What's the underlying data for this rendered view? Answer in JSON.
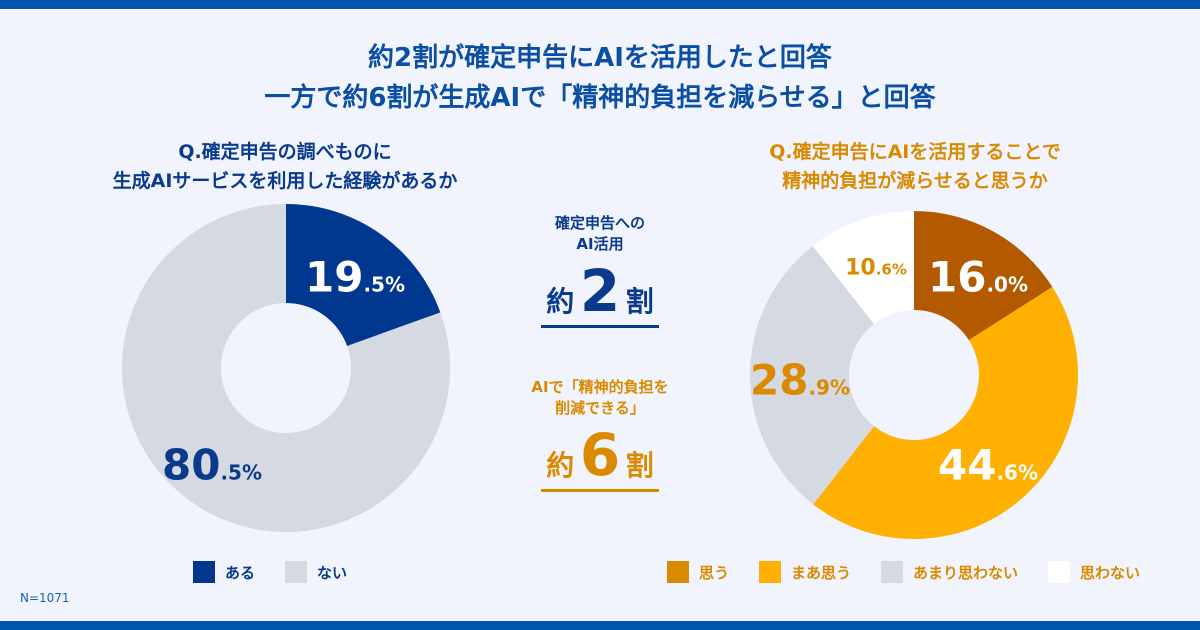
{
  "title": {
    "line1": "約2割が確定申告にAIを活用したと回答",
    "line2": "一方で約6割が生成AIで「精神的負担を減らせる」と回答"
  },
  "chart_data": [
    {
      "type": "pie",
      "donut": true,
      "title": "Q.確定申告の調べものに 生成AIサービスを利用した経験があるか",
      "title_lines": [
        "Q.確定申告の調べものに",
        "生成AIサービスを利用した経験があるか"
      ],
      "categories": [
        "ある",
        "ない"
      ],
      "values": [
        19.5,
        80.5
      ],
      "unit": "%",
      "colors": [
        "#00378f",
        "#d5d9e1"
      ],
      "label_colors": [
        "#ffffff",
        "#0a3a8c"
      ],
      "legend": "bottom",
      "legend_text_color": "#0a3a8c"
    },
    {
      "type": "pie",
      "donut": true,
      "title": "Q.確定申告にAIを活用することで 精神的負担が減らせると思うか",
      "title_lines": [
        "Q.確定申告にAIを活用することで",
        "精神的負担が減らせると思うか"
      ],
      "categories": [
        "思う",
        "まあ思う",
        "あまり思わない",
        "思わない"
      ],
      "values": [
        16.0,
        44.6,
        28.9,
        10.6
      ],
      "unit": "%",
      "colors": [
        "#b35900",
        "#ffb000",
        "#d5d9e1",
        "#ffffff"
      ],
      "legend_colors": [
        "#d98a00",
        "#ffb000",
        "#d5d9e1",
        "#ffffff"
      ],
      "label_colors": [
        "#ffffff",
        "#ffffff",
        "#d98a00",
        "#d98a00"
      ],
      "legend": "bottom",
      "legend_text_color": "#d98a00"
    }
  ],
  "middle": {
    "top": {
      "caption": [
        "確定申告への",
        "AI活用"
      ],
      "prefix": "約",
      "number": "2",
      "suffix": "割",
      "color": "#0a3a8c"
    },
    "bottom": {
      "caption": [
        "AIで「精神的負担を",
        "削減できる」"
      ],
      "prefix": "約",
      "number": "6",
      "suffix": "割",
      "color": "#d98a00"
    }
  },
  "footnote": "N=1071"
}
